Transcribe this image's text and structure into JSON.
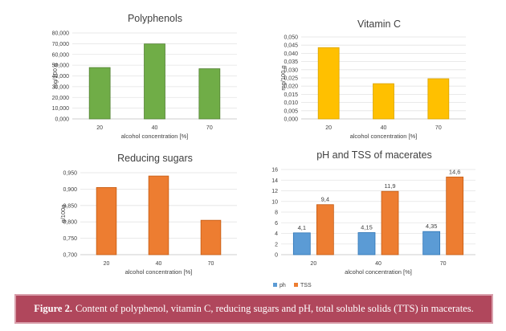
{
  "chart_data": [
    {
      "type": "bar",
      "title": "Polyphenols",
      "xlabel": "alcohol concentration [%]",
      "ylabel": "mg/100 g",
      "categories": [
        "20",
        "40",
        "70"
      ],
      "ylim": [
        0,
        80000
      ],
      "yticks": [
        "0,000",
        "10,000",
        "20,000",
        "30,000",
        "40,000",
        "50,000",
        "60,000",
        "70,000",
        "80,000"
      ],
      "series": [
        {
          "values": [
            47800,
            69800,
            46700
          ]
        }
      ],
      "colors": {
        "fill": "#70ad47",
        "stroke": "#548235"
      }
    },
    {
      "type": "bar",
      "title": "Vitamin C",
      "xlabel": "alcohol concentration [%]",
      "ylabel": "mg/100 g",
      "categories": [
        "20",
        "40",
        "70"
      ],
      "ylim": [
        0,
        0.05
      ],
      "yticks": [
        "0,000",
        "0,005",
        "0,010",
        "0,015",
        "0,020",
        "0,025",
        "0,030",
        "0,035",
        "0,040",
        "0,045",
        "0,050"
      ],
      "series": [
        {
          "values": [
            0.0435,
            0.0215,
            0.0245
          ]
        }
      ],
      "colors": {
        "fill": "#ffc000",
        "stroke": "#d9a300"
      }
    },
    {
      "type": "bar",
      "title": "Reducing sugars",
      "xlabel": "alcohol concentration [%]",
      "ylabel": "g/100g",
      "categories": [
        "20",
        "40",
        "70"
      ],
      "ylim": [
        0.7,
        0.95
      ],
      "yticks": [
        "0,700",
        "0,750",
        "0,800",
        "0,850",
        "0,900",
        "0,950"
      ],
      "series": [
        {
          "values": [
            0.905,
            0.94,
            0.805
          ]
        }
      ],
      "colors": {
        "fill": "#ed7d31",
        "stroke": "#c55a11"
      }
    },
    {
      "type": "bar",
      "title": "pH and TSS of macerates",
      "xlabel": "alcohol concentration [%]",
      "ylabel": "",
      "categories": [
        "20",
        "40",
        "70"
      ],
      "ylim": [
        0,
        16
      ],
      "yticks": [
        "0",
        "2",
        "4",
        "6",
        "8",
        "10",
        "12",
        "14",
        "16"
      ],
      "series": [
        {
          "name": "ph",
          "values": [
            4.1,
            4.15,
            4.35
          ],
          "labels": [
            "4,1",
            "4,15",
            "4,35"
          ],
          "color": "#5b9bd5",
          "stroke": "#2e75b6"
        },
        {
          "name": "TSS",
          "values": [
            9.4,
            11.9,
            14.6
          ],
          "labels": [
            "9,4",
            "11,9",
            "14,6"
          ],
          "color": "#ed7d31",
          "stroke": "#c55a11"
        }
      ],
      "legend": "bottom"
    }
  ],
  "caption": {
    "label": "Figure 2.",
    "text": "Content of polyphenol, vitamin C, reducing sugars and pH, total soluble solids (TTS) in macerates."
  }
}
